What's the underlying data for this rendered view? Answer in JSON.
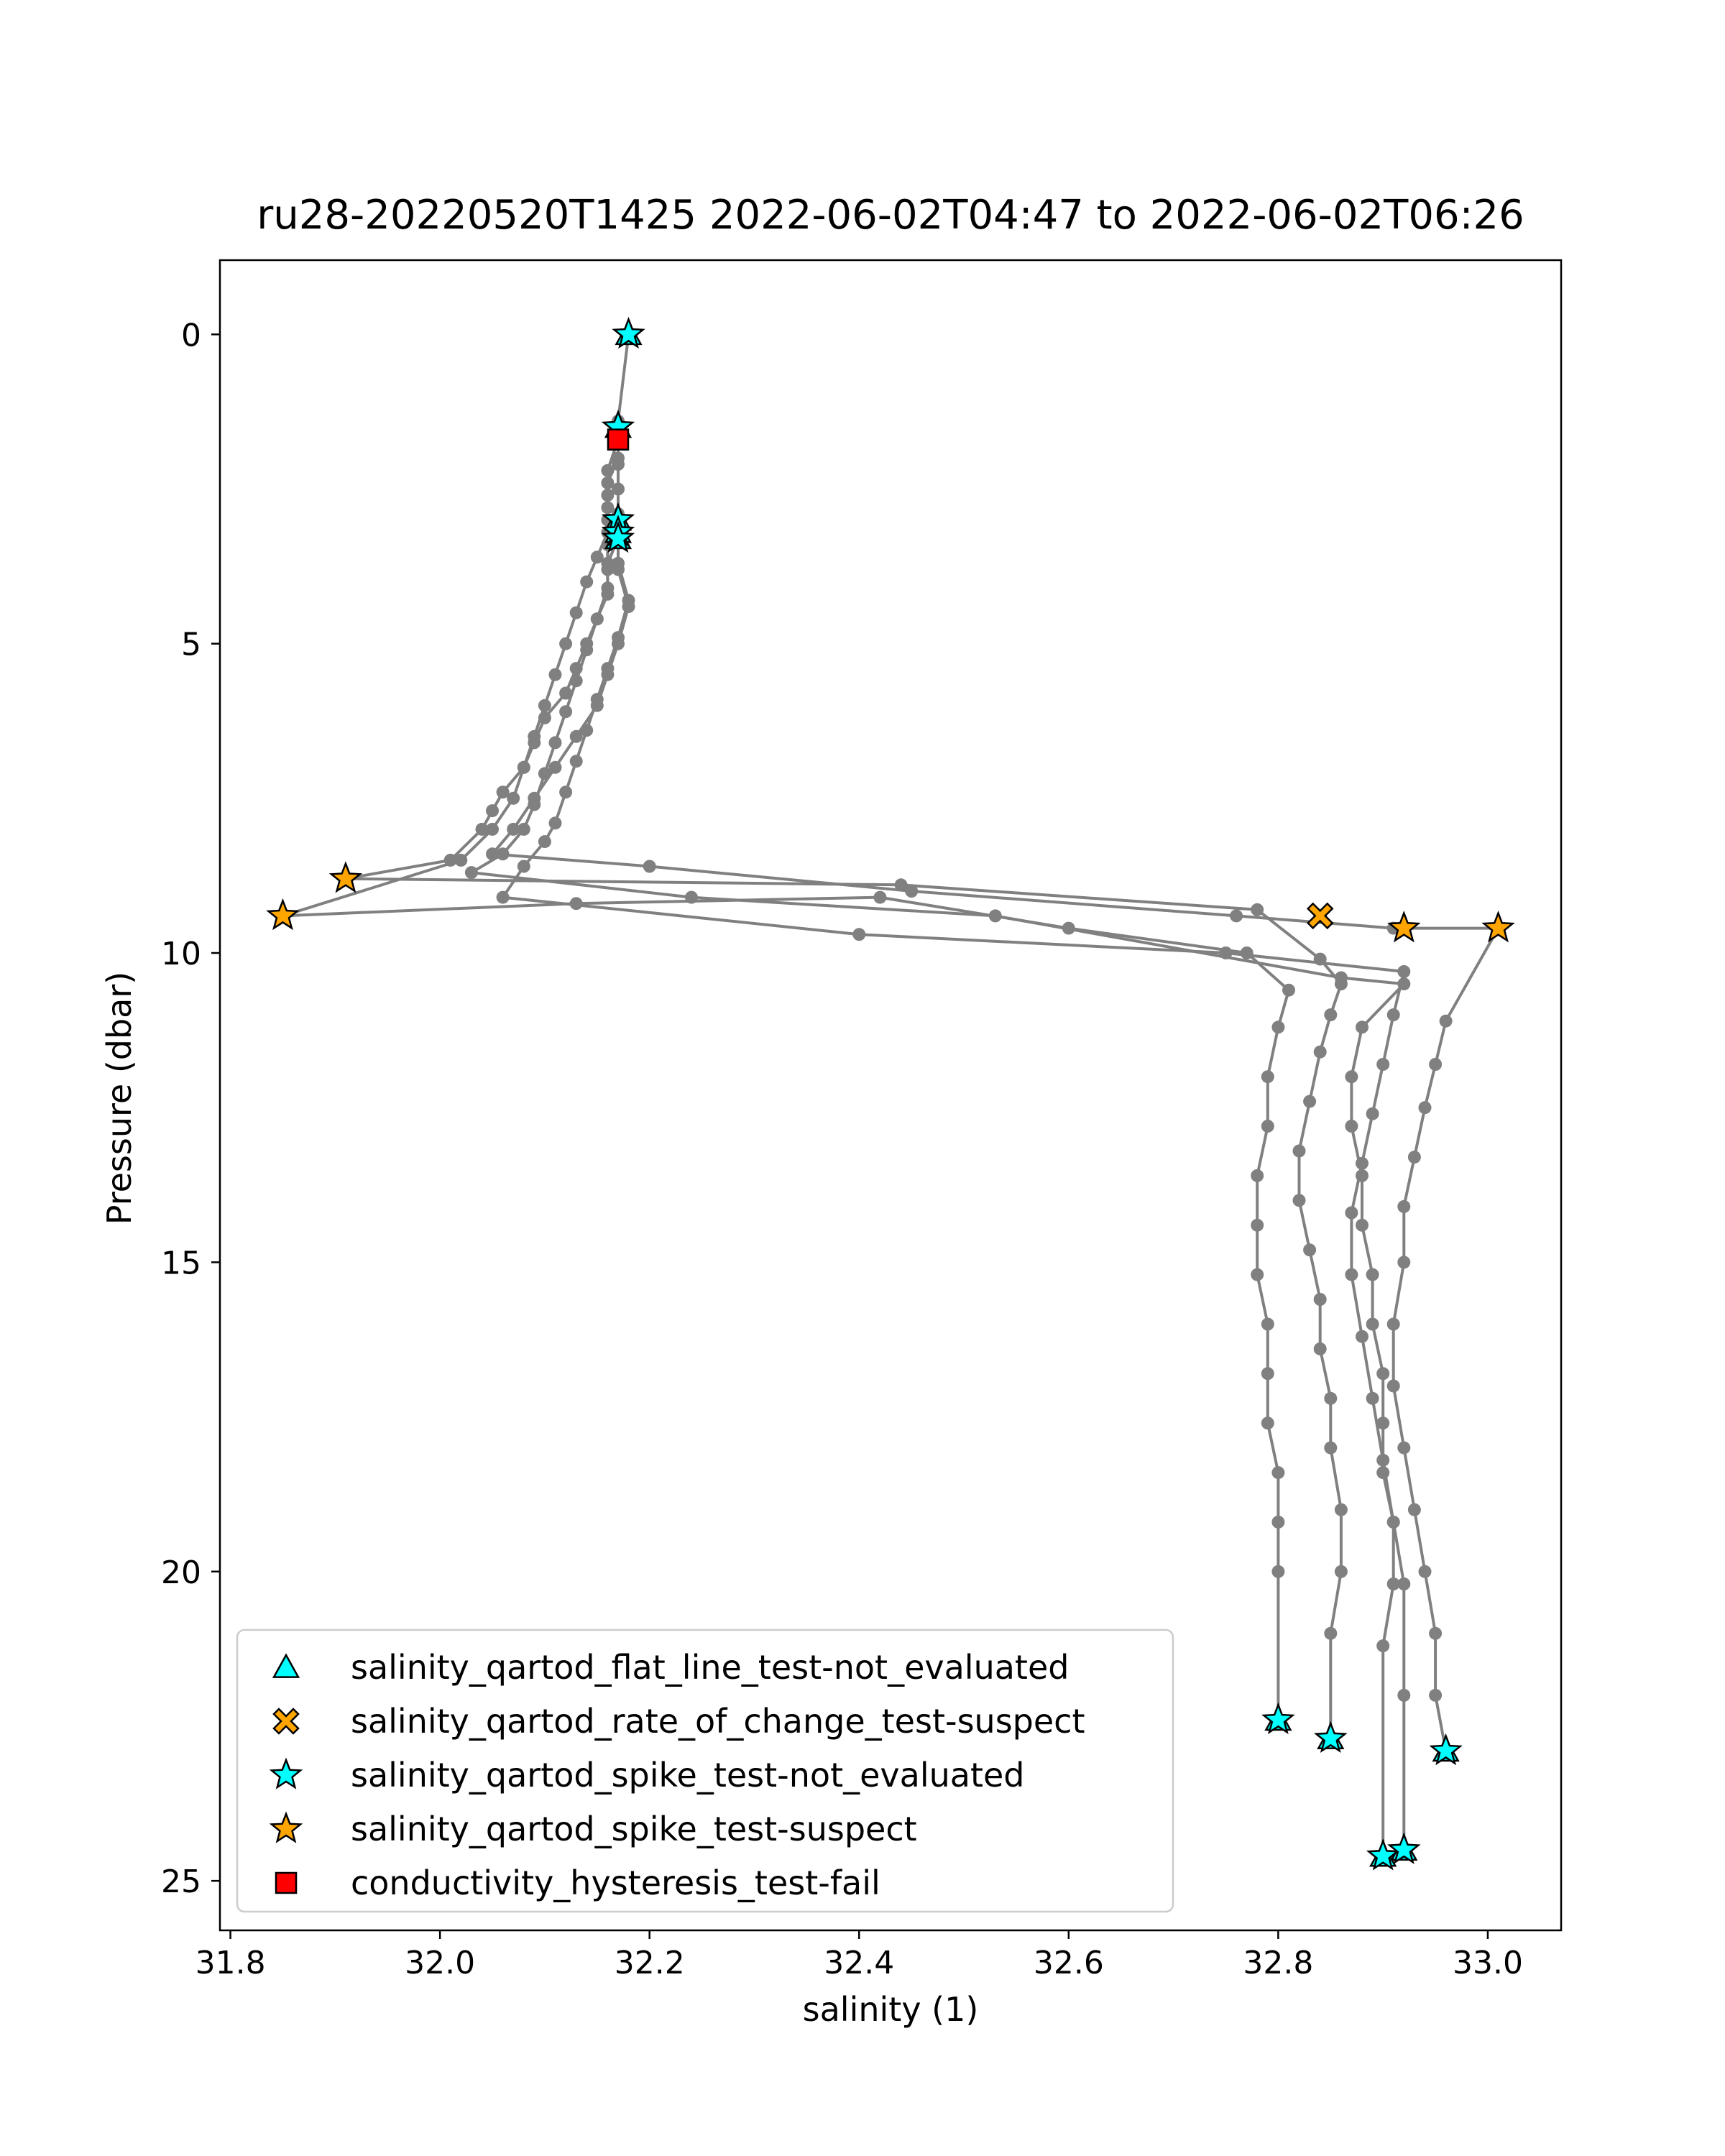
{
  "chart_data": {
    "type": "scatter",
    "title": "ru28-20220520T1425 2022-06-02T04:47 to 2022-06-02T06:26",
    "xlabel": "salinity (1)",
    "ylabel": "Pressure (dbar)",
    "xlim": [
      31.79,
      33.07
    ],
    "ylim": [
      25.8,
      -1.2
    ],
    "y_inverted": true,
    "grid": false,
    "legend_position": "lower left",
    "x_ticks": [
      31.8,
      32.0,
      32.2,
      32.4,
      32.6,
      32.8,
      33.0
    ],
    "x_tick_labels": [
      "31.8",
      "32.0",
      "32.2",
      "32.4",
      "32.6",
      "32.8",
      "33.0"
    ],
    "y_ticks": [
      0,
      5,
      10,
      15,
      20,
      25
    ],
    "y_tick_labels": [
      "0",
      "5",
      "10",
      "15",
      "20",
      "25"
    ],
    "line_color": "#808080",
    "profiles": [
      {
        "x": [
          32.18,
          32.17,
          32.17,
          32.16,
          32.16,
          32.16,
          32.16,
          32.16,
          32.16,
          32.15,
          32.14,
          32.13,
          32.12,
          32.1,
          32.09,
          32.08,
          32.06,
          32.05,
          32.04,
          32.01,
          31.91,
          32.44,
          32.78,
          32.84,
          32.86,
          32.85,
          32.84,
          32.83,
          32.82,
          32.82,
          32.83,
          32.84,
          32.84,
          32.85,
          32.85,
          32.86,
          32.86,
          32.85,
          32.85
        ],
        "y": [
          0.0,
          1.4,
          1.7,
          2.2,
          2.6,
          3.0,
          3.4,
          3.8,
          4.2,
          4.6,
          5.0,
          5.4,
          5.8,
          6.2,
          6.6,
          7.0,
          7.4,
          7.7,
          8.0,
          8.5,
          8.8,
          8.9,
          9.3,
          10.1,
          10.5,
          11.0,
          11.6,
          12.4,
          13.2,
          14.0,
          14.8,
          15.6,
          16.4,
          17.2,
          18.0,
          19.0,
          20.0,
          21.0,
          22.7
        ]
      },
      {
        "x": [
          32.17,
          32.17,
          32.16,
          32.16,
          32.16,
          32.15,
          32.14,
          32.13,
          32.12,
          32.11,
          32.1,
          32.09,
          32.08,
          32.07,
          32.05,
          32.02,
          31.85,
          32.13,
          32.42,
          32.6,
          32.77,
          32.81,
          32.8,
          32.79,
          32.79,
          32.78,
          32.78,
          32.78,
          32.79,
          32.79,
          32.79,
          32.8,
          32.8,
          32.8,
          32.8
        ],
        "y": [
          1.6,
          2.0,
          2.4,
          2.8,
          3.2,
          3.6,
          4.0,
          4.5,
          5.0,
          5.5,
          6.0,
          6.5,
          7.0,
          7.5,
          8.0,
          8.5,
          9.4,
          9.2,
          9.1,
          9.6,
          10.0,
          10.6,
          11.2,
          12.0,
          12.8,
          13.6,
          14.4,
          15.2,
          16.0,
          16.8,
          17.6,
          18.4,
          19.2,
          20.0,
          22.4
        ]
      },
      {
        "x": [
          32.17,
          32.17,
          32.17,
          32.17,
          32.17,
          32.16,
          32.16,
          32.15,
          32.14,
          32.13,
          32.12,
          32.11,
          32.1,
          32.09,
          32.08,
          32.06,
          32.03,
          32.24,
          32.53,
          32.86,
          32.92,
          32.88,
          32.87,
          32.87,
          32.88,
          32.88,
          32.89,
          32.89,
          32.9,
          32.9,
          32.9,
          32.91,
          32.91,
          32.9,
          32.9
        ],
        "y": [
          1.7,
          2.1,
          2.5,
          2.9,
          3.3,
          3.7,
          4.1,
          4.6,
          5.1,
          5.6,
          6.1,
          6.6,
          7.1,
          7.6,
          8.0,
          8.4,
          8.7,
          9.1,
          9.4,
          10.4,
          10.5,
          11.2,
          12.0,
          12.8,
          13.6,
          14.4,
          15.2,
          16.0,
          16.8,
          17.6,
          18.4,
          19.2,
          20.2,
          21.2,
          24.6
        ]
      },
      {
        "x": [
          32.17,
          32.17,
          32.18,
          32.17,
          32.16,
          32.15,
          32.13,
          32.11,
          32.09,
          32.07,
          32.05,
          32.2,
          32.45,
          32.76,
          32.91,
          33.01,
          32.96,
          32.95,
          32.94,
          32.93,
          32.92,
          32.92,
          32.91,
          32.91,
          32.92,
          32.93,
          32.94,
          32.95,
          32.95,
          32.96
        ],
        "y": [
          3.2,
          3.8,
          4.4,
          5.0,
          5.5,
          6.0,
          6.5,
          7.0,
          7.5,
          8.0,
          8.4,
          8.6,
          9.0,
          9.4,
          9.6,
          9.6,
          11.1,
          11.8,
          12.5,
          13.3,
          14.1,
          15.0,
          16.0,
          17.0,
          18.0,
          19.0,
          20.0,
          21.0,
          22.0,
          22.9
        ]
      },
      {
        "x": [
          32.17,
          32.17,
          32.18,
          32.17,
          32.16,
          32.15,
          32.14,
          32.13,
          32.12,
          32.11,
          32.1,
          32.08,
          32.06,
          32.4,
          32.75,
          32.92,
          32.91,
          32.9,
          32.89,
          32.88,
          32.87,
          32.87,
          32.88,
          32.89,
          32.9,
          32.91,
          32.92,
          32.92,
          32.92
        ],
        "y": [
          3.1,
          3.7,
          4.3,
          4.9,
          5.4,
          5.9,
          6.4,
          6.9,
          7.4,
          7.9,
          8.2,
          8.6,
          9.1,
          9.7,
          10.0,
          10.3,
          11.0,
          11.8,
          12.6,
          13.4,
          14.2,
          15.2,
          16.2,
          17.2,
          18.2,
          19.2,
          20.2,
          22.0,
          24.5
        ]
      }
    ],
    "markers": [
      {
        "name": "salinity_qartod_flat_line_test-not_evaluated",
        "symbol": "triangle",
        "color": "#00ffff",
        "x": [
          32.18,
          32.17,
          32.17,
          32.17,
          32.17,
          32.8,
          32.85,
          32.96,
          32.9,
          32.92
        ],
        "y": [
          0.0,
          1.5,
          3.0,
          3.2,
          3.3,
          22.4,
          22.7,
          22.9,
          24.6,
          24.5
        ]
      },
      {
        "name": "salinity_qartod_rate_of_change_test-suspect",
        "symbol": "x",
        "color": "#ffa500",
        "x": [
          32.84
        ],
        "y": [
          9.4
        ]
      },
      {
        "name": "salinity_qartod_spike_test-not_evaluated",
        "symbol": "star",
        "color": "#00ffff",
        "x": [
          32.18,
          32.17,
          32.17,
          32.17,
          32.17,
          32.8,
          32.85,
          32.96,
          32.9,
          32.92
        ],
        "y": [
          0.0,
          1.5,
          3.0,
          3.2,
          3.3,
          22.4,
          22.7,
          22.9,
          24.6,
          24.5
        ]
      },
      {
        "name": "salinity_qartod_spike_test-suspect",
        "symbol": "star",
        "color": "#ffa500",
        "x": [
          31.91,
          31.85,
          32.92,
          33.01
        ],
        "y": [
          8.8,
          9.4,
          9.6,
          9.6
        ]
      },
      {
        "name": "conductivity_hysteresis_test-fail",
        "symbol": "square",
        "color": "#ff0000",
        "x": [
          32.17
        ],
        "y": [
          1.7
        ]
      }
    ]
  }
}
